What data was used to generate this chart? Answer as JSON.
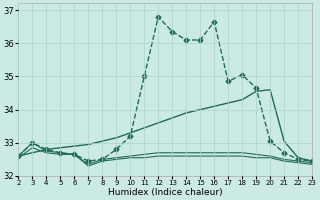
{
  "xlabel": "Humidex (Indice chaleur)",
  "xlim": [
    2,
    23
  ],
  "ylim": [
    32,
    37.2
  ],
  "yticks": [
    32,
    33,
    34,
    35,
    36,
    37
  ],
  "xticks": [
    2,
    3,
    4,
    5,
    6,
    7,
    8,
    9,
    10,
    11,
    12,
    13,
    14,
    15,
    16,
    17,
    18,
    19,
    20,
    21,
    22,
    23
  ],
  "bg_color": "#cceae4",
  "grid_color": "#aad4cc",
  "line_color": "#1e6b5a",
  "series": [
    {
      "x": [
        2,
        3,
        4,
        5,
        6,
        7,
        8,
        9,
        10,
        11,
        12,
        13,
        14,
        15,
        16,
        17,
        18,
        19,
        20,
        21,
        22,
        23
      ],
      "y": [
        32.6,
        33.0,
        32.8,
        32.7,
        32.65,
        32.45,
        32.5,
        32.8,
        33.2,
        35.0,
        36.8,
        36.35,
        36.1,
        36.1,
        36.65,
        34.85,
        35.05,
        34.65,
        33.05,
        32.7,
        32.5,
        32.45
      ],
      "marker": "D",
      "markersize": 2.5,
      "linewidth": 1.0,
      "linestyle": "--"
    },
    {
      "x": [
        2,
        3,
        4,
        5,
        6,
        7,
        8,
        9,
        10,
        11,
        12,
        13,
        14,
        15,
        16,
        17,
        18,
        19,
        20,
        21,
        22,
        23
      ],
      "y": [
        32.6,
        32.7,
        32.8,
        32.85,
        32.9,
        32.95,
        33.05,
        33.15,
        33.3,
        33.45,
        33.6,
        33.75,
        33.9,
        34.0,
        34.1,
        34.2,
        34.3,
        34.55,
        34.6,
        33.05,
        32.55,
        32.45
      ],
      "marker": null,
      "linewidth": 1.0,
      "linestyle": "-"
    },
    {
      "x": [
        2,
        3,
        4,
        5,
        6,
        7,
        8,
        9,
        10,
        11,
        12,
        13,
        14,
        15,
        16,
        17,
        18,
        19,
        20,
        21,
        22,
        23
      ],
      "y": [
        32.6,
        33.0,
        32.75,
        32.7,
        32.65,
        32.35,
        32.5,
        32.55,
        32.6,
        32.65,
        32.7,
        32.7,
        32.7,
        32.7,
        32.7,
        32.7,
        32.7,
        32.65,
        32.6,
        32.5,
        32.45,
        32.4
      ],
      "marker": null,
      "linewidth": 0.8,
      "linestyle": "-"
    },
    {
      "x": [
        2,
        3,
        4,
        5,
        6,
        7,
        8,
        9,
        10,
        11,
        12,
        13,
        14,
        15,
        16,
        17,
        18,
        19,
        20,
        21,
        22,
        23
      ],
      "y": [
        32.55,
        32.85,
        32.7,
        32.65,
        32.65,
        32.3,
        32.45,
        32.5,
        32.55,
        32.55,
        32.6,
        32.6,
        32.6,
        32.6,
        32.6,
        32.6,
        32.6,
        32.55,
        32.55,
        32.45,
        32.4,
        32.35
      ],
      "marker": null,
      "linewidth": 0.8,
      "linestyle": "-"
    }
  ]
}
